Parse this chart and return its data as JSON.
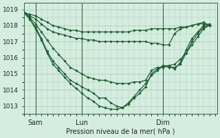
{
  "background_color": "#d4ede0",
  "line_color": "#1e5c30",
  "grid_color": "#a8c8b0",
  "xlabel": "Pression niveau de la mer( hPa )",
  "ylim": [
    1012.5,
    1019.4
  ],
  "xlim": [
    0,
    100
  ],
  "yticks": [
    1013,
    1014,
    1015,
    1016,
    1017,
    1018,
    1019
  ],
  "xtick_positions": [
    6,
    30,
    72
  ],
  "xtick_labels": [
    "Sam",
    "Lun",
    "Dim"
  ],
  "vline_positions": [
    6,
    30,
    72
  ],
  "series": [
    {
      "x": [
        0,
        3,
        6,
        9,
        12,
        15,
        18,
        21,
        24,
        27,
        30,
        33,
        36,
        39,
        42,
        45,
        48,
        51,
        54,
        57,
        60,
        63,
        66,
        69,
        72,
        75,
        78,
        81,
        84,
        87,
        90,
        93,
        96
      ],
      "y": [
        1018.8,
        1018.7,
        1018.6,
        1018.4,
        1018.2,
        1018.0,
        1017.9,
        1017.8,
        1017.7,
        1017.7,
        1017.6,
        1017.6,
        1017.6,
        1017.6,
        1017.6,
        1017.6,
        1017.6,
        1017.6,
        1017.6,
        1017.7,
        1017.7,
        1017.7,
        1017.8,
        1017.8,
        1017.8,
        1017.8,
        1017.8,
        1017.9,
        1017.9,
        1018.0,
        1018.1,
        1018.2,
        1018.0
      ]
    },
    {
      "x": [
        0,
        3,
        6,
        9,
        12,
        15,
        18,
        21,
        24,
        27,
        30,
        33,
        36,
        39,
        42,
        45,
        48,
        51,
        54,
        57,
        60,
        63,
        66,
        69,
        72,
        75,
        78,
        81,
        84,
        87,
        90,
        93,
        96
      ],
      "y": [
        1018.8,
        1018.6,
        1018.4,
        1018.1,
        1017.8,
        1017.6,
        1017.5,
        1017.4,
        1017.3,
        1017.2,
        1017.2,
        1017.1,
        1017.1,
        1017.0,
        1017.0,
        1017.0,
        1017.0,
        1017.0,
        1017.0,
        1017.0,
        1017.0,
        1017.0,
        1016.9,
        1016.9,
        1016.8,
        1016.8,
        1017.5,
        1017.8,
        1017.9,
        1018.0,
        1018.1,
        1018.1,
        1018.0
      ]
    },
    {
      "x": [
        0,
        3,
        6,
        9,
        12,
        15,
        18,
        21,
        24,
        27,
        30,
        33,
        36,
        39,
        42,
        45,
        48,
        51,
        54,
        57,
        60,
        63,
        66,
        69,
        72,
        75,
        78,
        81,
        84,
        87,
        90,
        93,
        96
      ],
      "y": [
        1018.8,
        1018.5,
        1018.1,
        1017.6,
        1017.1,
        1016.6,
        1016.2,
        1015.8,
        1015.4,
        1015.2,
        1015.0,
        1014.8,
        1014.7,
        1014.6,
        1014.6,
        1014.5,
        1014.4,
        1014.4,
        1014.4,
        1014.5,
        1014.5,
        1014.6,
        1015.2,
        1015.4,
        1015.4,
        1015.5,
        1015.6,
        1015.9,
        1016.3,
        1016.8,
        1017.3,
        1017.8,
        1018.0
      ]
    },
    {
      "x": [
        0,
        3,
        6,
        9,
        12,
        15,
        18,
        21,
        24,
        27,
        30,
        33,
        36,
        39,
        42,
        45,
        48,
        51,
        54,
        57,
        60,
        63,
        66,
        69,
        72,
        75,
        78,
        81,
        84,
        87,
        90,
        93,
        96
      ],
      "y": [
        1018.8,
        1018.4,
        1017.9,
        1017.2,
        1016.4,
        1015.8,
        1015.4,
        1015.0,
        1014.6,
        1014.4,
        1014.2,
        1014.0,
        1013.8,
        1013.5,
        1013.5,
        1013.2,
        1013.0,
        1012.9,
        1013.1,
        1013.5,
        1013.8,
        1014.2,
        1015.0,
        1015.3,
        1015.5,
        1015.4,
        1015.4,
        1015.6,
        1016.3,
        1017.0,
        1017.5,
        1017.9,
        1018.0
      ]
    },
    {
      "x": [
        0,
        3,
        6,
        9,
        12,
        15,
        18,
        21,
        24,
        27,
        30,
        33,
        36,
        39,
        42,
        45,
        48,
        51,
        54,
        57,
        60,
        63,
        66,
        69,
        72,
        75,
        78,
        81,
        84,
        87,
        90,
        93,
        96
      ],
      "y": [
        1018.8,
        1018.4,
        1017.8,
        1017.1,
        1016.3,
        1015.6,
        1015.2,
        1014.8,
        1014.4,
        1014.1,
        1013.8,
        1013.5,
        1013.3,
        1013.0,
        1012.9,
        1012.8,
        1012.8,
        1012.9,
        1013.2,
        1013.6,
        1014.0,
        1014.4,
        1014.9,
        1015.2,
        1015.5,
        1015.5,
        1015.3,
        1015.7,
        1016.5,
        1017.2,
        1017.6,
        1018.0,
        1018.1
      ]
    }
  ]
}
